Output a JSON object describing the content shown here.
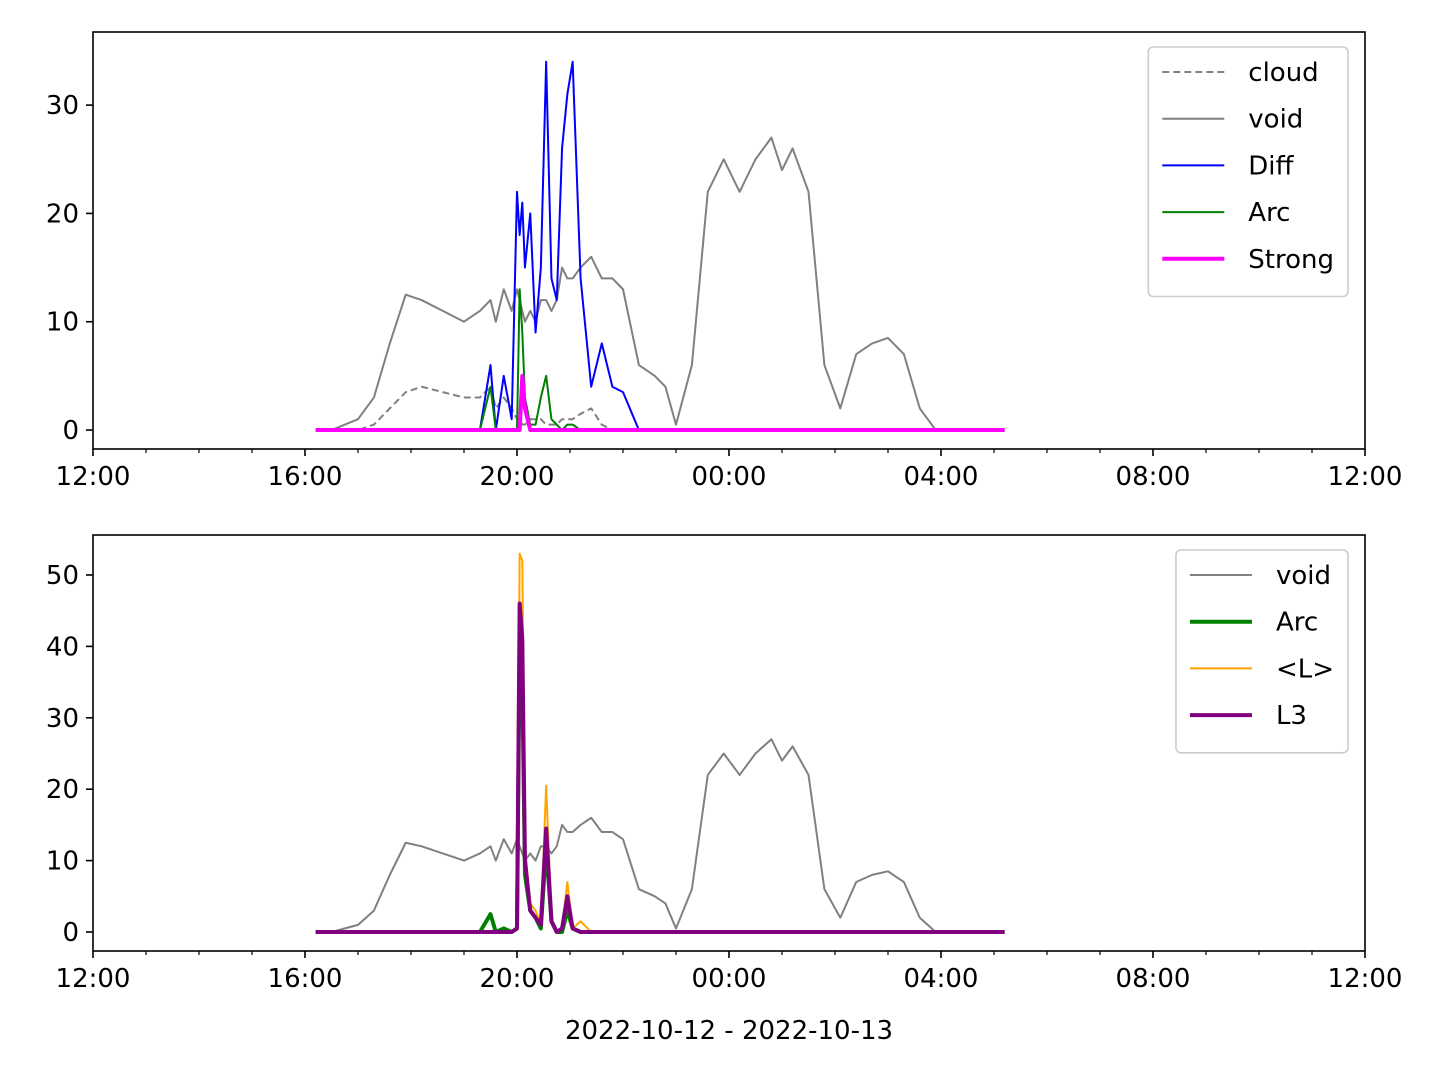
{
  "chart_data": [
    {
      "type": "line",
      "x": [
        16.2,
        16.5,
        17.0,
        17.3,
        17.6,
        17.9,
        18.2,
        18.6,
        19.0,
        19.3,
        19.5,
        19.6,
        19.75,
        19.9,
        20.0,
        20.05,
        20.1,
        20.15,
        20.25,
        20.35,
        20.45,
        20.55,
        20.65,
        20.75,
        20.85,
        20.95,
        21.05,
        21.2,
        21.4,
        21.6,
        21.8,
        22.0,
        22.3,
        22.6,
        22.8,
        23.0,
        23.3,
        23.6,
        23.9,
        24.2,
        24.5,
        24.8,
        25.0,
        25.2,
        25.5,
        25.8,
        26.1,
        26.4,
        26.7,
        27.0,
        27.3,
        27.6,
        27.9,
        28.5,
        29.2
      ],
      "xlim": [
        12,
        36
      ],
      "xticks": [
        {
          "value": 12,
          "label": "12:00"
        },
        {
          "value": 16,
          "label": "16:00"
        },
        {
          "value": 20,
          "label": "20:00"
        },
        {
          "value": 24,
          "label": "00:00"
        },
        {
          "value": 28,
          "label": "04:00"
        },
        {
          "value": 32,
          "label": "08:00"
        },
        {
          "value": 36,
          "label": "12:00"
        }
      ],
      "xminorticks": [
        13,
        14,
        15,
        17,
        18,
        19,
        21,
        22,
        23,
        25,
        26,
        27,
        29,
        30,
        31,
        33,
        34,
        35
      ],
      "ylim": [
        -1.75,
        36.75
      ],
      "yticks": [
        0,
        10,
        20,
        30
      ],
      "legend": "upper right",
      "series": [
        {
          "name": "cloud",
          "color": "#808080",
          "width": 2,
          "dash": true,
          "values": [
            0,
            0,
            0,
            0.5,
            2,
            3.5,
            4,
            3.5,
            3,
            3,
            4,
            2,
            3,
            2,
            1,
            1,
            0.5,
            0.5,
            1,
            1,
            1,
            0.5,
            0.5,
            0.5,
            1,
            1,
            1,
            1.5,
            2,
            0.5,
            0,
            0,
            0,
            0,
            0,
            0,
            0,
            0,
            0,
            0,
            0,
            0,
            0,
            0,
            0,
            0,
            0,
            0,
            0,
            0,
            0,
            0,
            0,
            0,
            0
          ]
        },
        {
          "name": "void",
          "color": "#808080",
          "width": 2,
          "values": [
            0,
            0,
            1,
            3,
            8,
            12.5,
            12,
            11,
            10,
            11,
            12,
            10,
            13,
            11,
            13,
            12,
            11,
            10,
            11,
            10,
            12,
            12,
            11,
            12,
            15,
            14,
            14,
            15,
            16,
            14,
            14,
            13,
            6,
            5,
            4,
            0.5,
            6,
            22,
            25,
            22,
            25,
            27,
            24,
            26,
            22,
            6,
            2,
            7,
            8,
            8.5,
            7,
            2,
            0,
            0,
            0
          ]
        },
        {
          "name": "Diff",
          "color": "#0000ff",
          "width": 2,
          "values": [
            0,
            0,
            0,
            0,
            0,
            0,
            0,
            0,
            0,
            0,
            6,
            0,
            5,
            1,
            22,
            18,
            21,
            15,
            20,
            9,
            15,
            34,
            14,
            12,
            26,
            31,
            34,
            14,
            4,
            8,
            4,
            3.5,
            0,
            0,
            0,
            0,
            0,
            0,
            0,
            0,
            0,
            0,
            0,
            0,
            0,
            0,
            0,
            0,
            0,
            0,
            0,
            0,
            0,
            0,
            0
          ]
        },
        {
          "name": "Arc",
          "color": "#008000",
          "width": 2,
          "values": [
            0,
            0,
            0,
            0,
            0,
            0,
            0,
            0,
            0,
            0,
            4,
            0,
            0,
            0,
            0,
            13,
            9,
            3,
            0.5,
            0.5,
            3,
            5,
            1,
            0.5,
            0,
            0.5,
            0.5,
            0,
            0,
            0,
            0,
            0,
            0,
            0,
            0,
            0,
            0,
            0,
            0,
            0,
            0,
            0,
            0,
            0,
            0,
            0,
            0,
            0,
            0,
            0,
            0,
            0,
            0,
            0,
            0
          ]
        },
        {
          "name": "Strong",
          "color": "#ff00ff",
          "width": 4,
          "values": [
            0,
            0,
            0,
            0,
            0,
            0,
            0,
            0,
            0,
            0,
            0,
            0,
            0,
            0,
            0,
            0,
            5,
            2,
            0,
            0,
            0,
            0,
            0,
            0,
            0,
            0,
            0,
            0,
            0,
            0,
            0,
            0,
            0,
            0,
            0,
            0,
            0,
            0,
            0,
            0,
            0,
            0,
            0,
            0,
            0,
            0,
            0,
            0,
            0,
            0,
            0,
            0,
            0,
            0,
            0
          ]
        }
      ]
    },
    {
      "type": "line",
      "x": [
        16.2,
        16.5,
        17.0,
        17.3,
        17.6,
        17.9,
        18.2,
        18.6,
        19.0,
        19.3,
        19.5,
        19.6,
        19.75,
        19.9,
        20.0,
        20.05,
        20.1,
        20.15,
        20.25,
        20.35,
        20.45,
        20.55,
        20.65,
        20.75,
        20.85,
        20.95,
        21.05,
        21.2,
        21.4,
        21.6,
        21.8,
        22.0,
        22.3,
        22.6,
        22.8,
        23.0,
        23.3,
        23.6,
        23.9,
        24.2,
        24.5,
        24.8,
        25.0,
        25.2,
        25.5,
        25.8,
        26.1,
        26.4,
        26.7,
        27.0,
        27.3,
        27.6,
        27.9,
        28.5,
        29.2
      ],
      "xlim": [
        12,
        36
      ],
      "xticks": [
        {
          "value": 12,
          "label": "12:00"
        },
        {
          "value": 16,
          "label": "16:00"
        },
        {
          "value": 20,
          "label": "20:00"
        },
        {
          "value": 24,
          "label": "00:00"
        },
        {
          "value": 28,
          "label": "04:00"
        },
        {
          "value": 32,
          "label": "08:00"
        },
        {
          "value": 36,
          "label": "12:00"
        }
      ],
      "xminorticks": [
        13,
        14,
        15,
        17,
        18,
        19,
        21,
        22,
        23,
        25,
        26,
        27,
        29,
        30,
        31,
        33,
        34,
        35
      ],
      "xlabel": "2022-10-12 - 2022-10-13",
      "ylim": [
        -2.66,
        55.6
      ],
      "yticks": [
        0,
        10,
        20,
        30,
        40,
        50
      ],
      "legend": "upper right",
      "series": [
        {
          "name": "void",
          "color": "#808080",
          "width": 2,
          "values": [
            0,
            0,
            1,
            3,
            8,
            12.5,
            12,
            11,
            10,
            11,
            12,
            10,
            13,
            11,
            13,
            12,
            11,
            10,
            11,
            10,
            12,
            12,
            11,
            12,
            15,
            14,
            14,
            15,
            16,
            14,
            14,
            13,
            6,
            5,
            4,
            0.5,
            6,
            22,
            25,
            22,
            25,
            27,
            24,
            26,
            22,
            6,
            2,
            7,
            8,
            8.5,
            7,
            2,
            0,
            0,
            0
          ]
        },
        {
          "name": "Arc",
          "color": "#008000",
          "width": 4,
          "values": [
            0,
            0,
            0,
            0,
            0,
            0,
            0,
            0,
            0,
            0,
            2.5,
            0,
            0.5,
            0,
            0.5,
            40,
            35,
            8,
            3,
            2,
            0.5,
            12,
            1.5,
            0,
            0,
            3,
            0.5,
            0,
            0,
            0,
            0,
            0,
            0,
            0,
            0,
            0,
            0,
            0,
            0,
            0,
            0,
            0,
            0,
            0,
            0,
            0,
            0,
            0,
            0,
            0,
            0,
            0,
            0,
            0,
            0
          ]
        },
        {
          "name": "<L>",
          "color": "#ffa500",
          "width": 2,
          "values": [
            0,
            0,
            0,
            0,
            0,
            0,
            0,
            0,
            0,
            0,
            0,
            0,
            0,
            0,
            0.5,
            53,
            52,
            12,
            4,
            3,
            1,
            20.5,
            2,
            0,
            0.5,
            7,
            0.5,
            1.5,
            0,
            0,
            0,
            0,
            0,
            0,
            0,
            0,
            0,
            0,
            0,
            0,
            0,
            0,
            0,
            0,
            0,
            0,
            0,
            0,
            0,
            0,
            0,
            0,
            0,
            0,
            0
          ]
        },
        {
          "name": "L3",
          "color": "#800080",
          "width": 4,
          "values": [
            0,
            0,
            0,
            0,
            0,
            0,
            0,
            0,
            0,
            0,
            0,
            0,
            0,
            0,
            0.5,
            46,
            41,
            10,
            3,
            2,
            1,
            14.5,
            1.5,
            0,
            0.5,
            5,
            0.5,
            0,
            0,
            0,
            0,
            0,
            0,
            0,
            0,
            0,
            0,
            0,
            0,
            0,
            0,
            0,
            0,
            0,
            0,
            0,
            0,
            0,
            0,
            0,
            0,
            0,
            0,
            0,
            0
          ]
        }
      ]
    }
  ]
}
